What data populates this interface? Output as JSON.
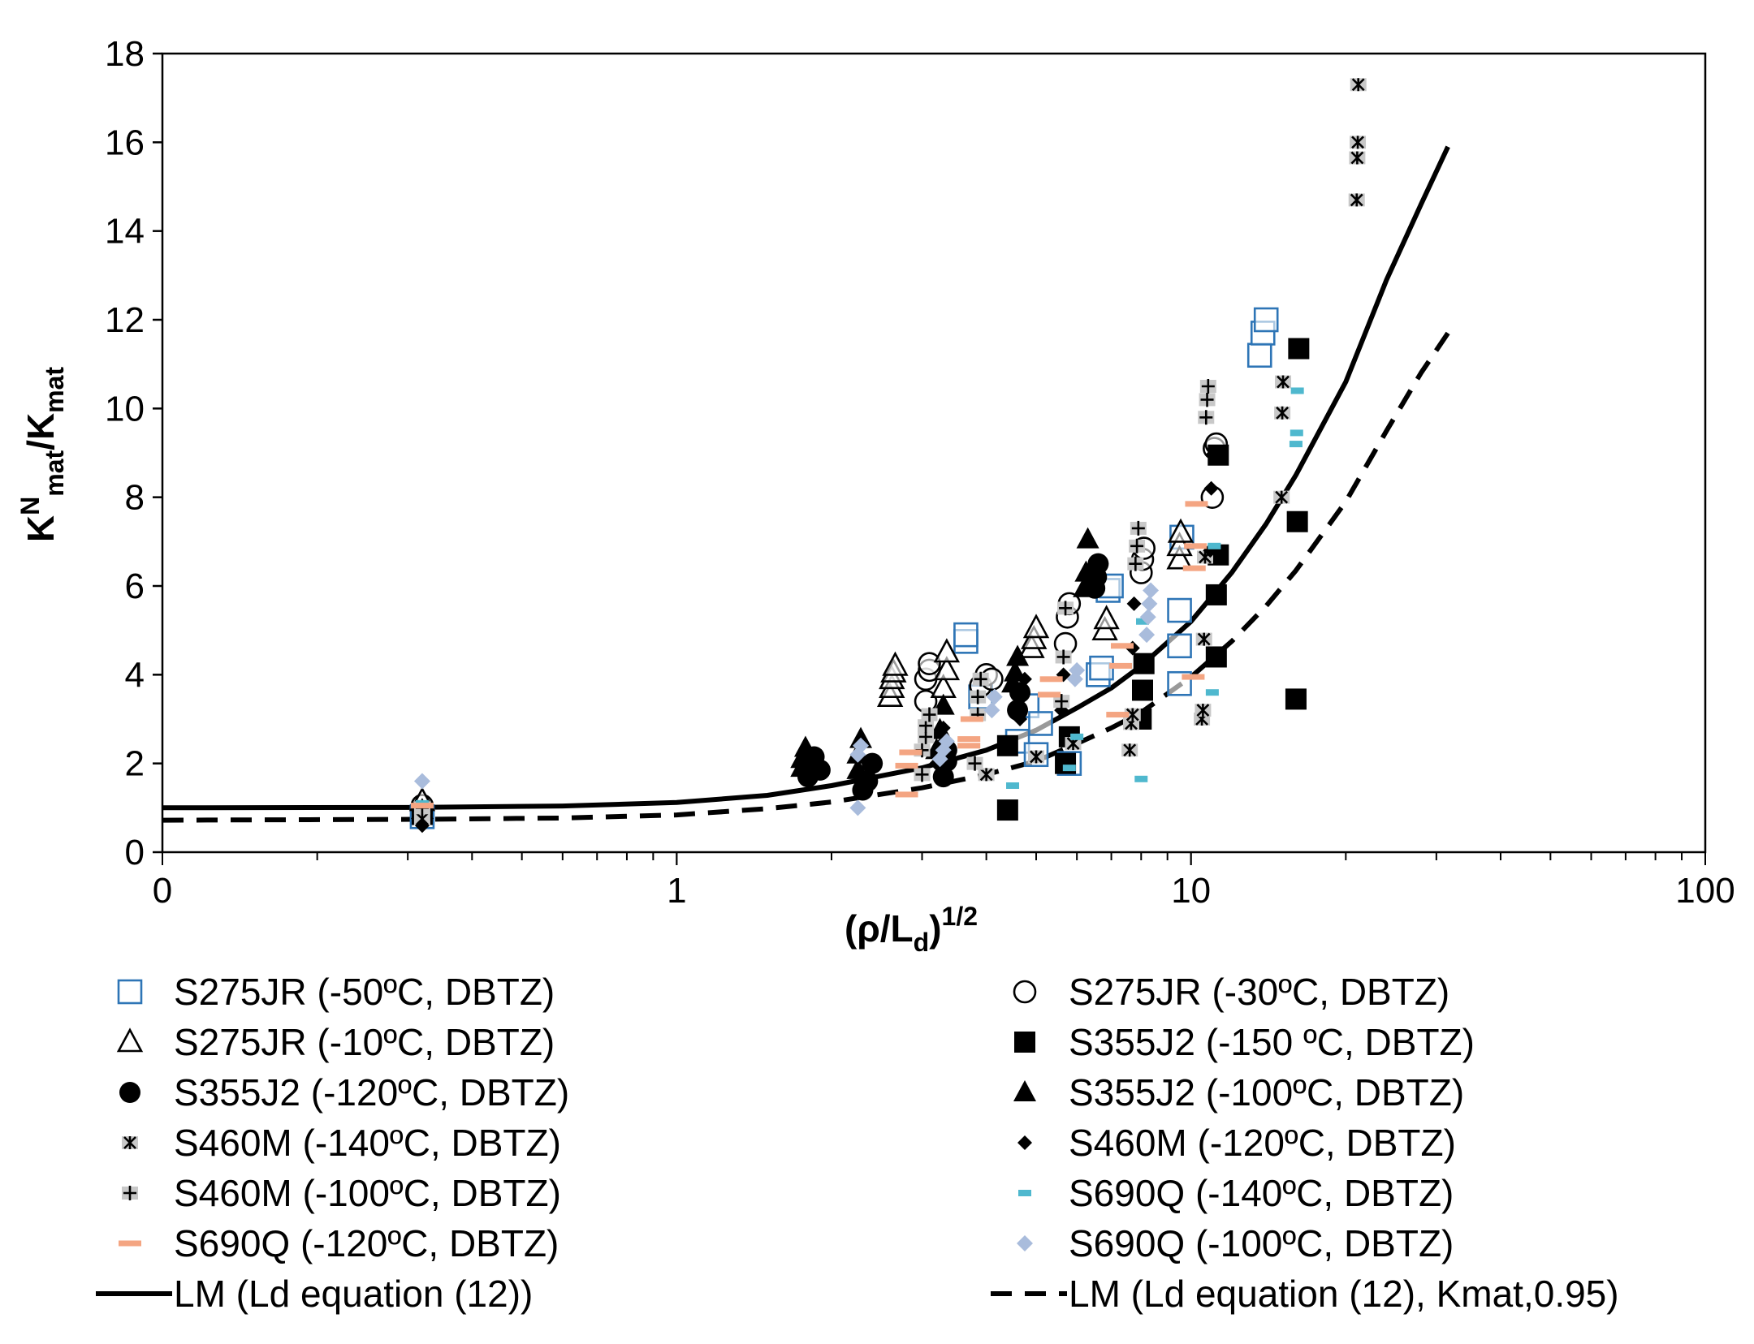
{
  "chart_data": {
    "type": "scatter",
    "title": "",
    "xlabel": "(ρ/Ld)^1/2",
    "xlabel_main": "(ρ/L",
    "xlabel_sub": "d",
    "xlabel_tail": ")",
    "xlabel_sup": "1/2",
    "ylabel": "K^N mat/K mat",
    "ylabel_k1": "K",
    "ylabel_sup": "N",
    "ylabel_sub1": "mat",
    "ylabel_slash": "/K",
    "ylabel_sub2": "mat",
    "x_scale": "log",
    "xlim": [
      0.1,
      100
    ],
    "ylim": [
      0,
      18
    ],
    "x_tick_labels": [
      "0",
      "1",
      "10",
      "100"
    ],
    "y_ticks": [
      0,
      2,
      4,
      6,
      8,
      10,
      12,
      14,
      16,
      18
    ],
    "y_tick_labels": [
      "0",
      "2",
      "4",
      "6",
      "8",
      "10",
      "12",
      "14",
      "16",
      "18"
    ],
    "legend_position": "bottom",
    "series": [
      {
        "name": "S275JR (-50ºC, DBTZ)",
        "marker": "square-open",
        "color": "#2e75b6",
        "points": [
          [
            0.32,
            0.8
          ],
          [
            3.65,
            4.75
          ],
          [
            3.65,
            4.9
          ],
          [
            3.9,
            3.5
          ],
          [
            4.6,
            2.5
          ],
          [
            4.8,
            3.3
          ],
          [
            5.0,
            2.2
          ],
          [
            5.1,
            2.9
          ],
          [
            5.8,
            2.0
          ],
          [
            6.6,
            4.0
          ],
          [
            6.7,
            4.15
          ],
          [
            6.9,
            5.9
          ],
          [
            7.0,
            6.0
          ],
          [
            9.5,
            3.8
          ],
          [
            9.5,
            4.65
          ],
          [
            9.5,
            5.45
          ],
          [
            9.6,
            7.1
          ],
          [
            13.6,
            11.2
          ],
          [
            13.8,
            11.7
          ],
          [
            14.0,
            12.0
          ]
        ]
      },
      {
        "name": "S275JR (-30ºC, DBTZ)",
        "marker": "circle-open",
        "color": "#000000",
        "points": [
          [
            0.32,
            1.05
          ],
          [
            3.05,
            3.4
          ],
          [
            3.05,
            3.9
          ],
          [
            3.1,
            4.1
          ],
          [
            3.1,
            4.25
          ],
          [
            3.9,
            3.75
          ],
          [
            4.0,
            4.0
          ],
          [
            4.1,
            3.9
          ],
          [
            5.7,
            4.7
          ],
          [
            5.75,
            5.3
          ],
          [
            5.8,
            5.6
          ],
          [
            8.0,
            6.3
          ],
          [
            8.05,
            6.6
          ],
          [
            8.1,
            6.85
          ],
          [
            11.0,
            8.0
          ],
          [
            11.1,
            9.1
          ],
          [
            11.2,
            9.2
          ]
        ]
      },
      {
        "name": "S275JR (-10ºC, DBTZ)",
        "marker": "triangle-open",
        "color": "#000000",
        "points": [
          [
            0.32,
            1.15
          ],
          [
            2.6,
            3.5
          ],
          [
            2.62,
            3.7
          ],
          [
            2.62,
            3.9
          ],
          [
            2.64,
            4.05
          ],
          [
            2.66,
            4.2
          ],
          [
            3.3,
            3.7
          ],
          [
            3.35,
            4.1
          ],
          [
            3.35,
            4.5
          ],
          [
            4.9,
            4.6
          ],
          [
            4.95,
            4.8
          ],
          [
            5.0,
            5.05
          ],
          [
            6.8,
            5.0
          ],
          [
            6.85,
            5.25
          ],
          [
            9.5,
            6.6
          ],
          [
            9.5,
            6.9
          ],
          [
            9.55,
            7.2
          ]
        ]
      },
      {
        "name": "S355J2 (-150 ºC, DBTZ)",
        "marker": "square-filled",
        "color": "#000000",
        "points": [
          [
            0.32,
            0.85
          ],
          [
            4.4,
            0.95
          ],
          [
            4.4,
            2.4
          ],
          [
            5.7,
            2.0
          ],
          [
            5.8,
            2.6
          ],
          [
            8.0,
            3.0
          ],
          [
            8.05,
            3.65
          ],
          [
            8.1,
            4.25
          ],
          [
            11.2,
            4.4
          ],
          [
            11.2,
            5.8
          ],
          [
            11.3,
            6.7
          ],
          [
            11.3,
            8.95
          ],
          [
            16.0,
            3.45
          ],
          [
            16.1,
            7.45
          ],
          [
            16.2,
            11.35
          ]
        ]
      },
      {
        "name": "S355J2 (-120ºC, DBTZ)",
        "marker": "circle-filled",
        "color": "#000000",
        "points": [
          [
            0.32,
            0.9
          ],
          [
            1.8,
            1.7
          ],
          [
            1.8,
            1.95
          ],
          [
            1.85,
            2.15
          ],
          [
            1.9,
            1.85
          ],
          [
            2.3,
            1.4
          ],
          [
            2.35,
            1.6
          ],
          [
            2.4,
            2.0
          ],
          [
            3.3,
            1.7
          ],
          [
            3.35,
            2.05
          ],
          [
            3.35,
            2.3
          ],
          [
            4.6,
            3.2
          ],
          [
            4.65,
            3.6
          ],
          [
            6.5,
            5.95
          ],
          [
            6.55,
            6.2
          ],
          [
            6.6,
            6.5
          ]
        ]
      },
      {
        "name": "S355J2 (-100ºC, DBTZ)",
        "marker": "triangle-filled",
        "color": "#000000",
        "points": [
          [
            0.32,
            0.95
          ],
          [
            1.75,
            1.9
          ],
          [
            1.75,
            2.1
          ],
          [
            1.78,
            2.35
          ],
          [
            2.25,
            1.85
          ],
          [
            2.25,
            2.2
          ],
          [
            2.28,
            2.55
          ],
          [
            3.2,
            2.3
          ],
          [
            3.25,
            2.75
          ],
          [
            3.3,
            3.3
          ],
          [
            4.5,
            3.8
          ],
          [
            4.55,
            4.05
          ],
          [
            4.6,
            4.4
          ],
          [
            6.2,
            5.95
          ],
          [
            6.25,
            6.3
          ],
          [
            6.3,
            7.05
          ]
        ]
      },
      {
        "name": "S460M (-140ºC, DBTZ)",
        "marker": "asterisk",
        "color": "#000000",
        "points": [
          [
            0.32,
            0.75
          ],
          [
            4.0,
            1.75
          ],
          [
            5.0,
            2.15
          ],
          [
            5.9,
            2.45
          ],
          [
            7.6,
            2.3
          ],
          [
            7.65,
            2.9
          ],
          [
            7.7,
            3.1
          ],
          [
            10.5,
            3.0
          ],
          [
            10.55,
            3.2
          ],
          [
            10.6,
            4.8
          ],
          [
            10.65,
            6.65
          ],
          [
            15.0,
            8.0
          ],
          [
            15.05,
            9.9
          ],
          [
            15.1,
            10.6
          ],
          [
            21.0,
            14.7
          ],
          [
            21.05,
            15.65
          ],
          [
            21.1,
            16.0
          ],
          [
            21.15,
            17.3
          ]
        ]
      },
      {
        "name": "S460M (-120ºC, DBTZ)",
        "marker": "diamond-filled",
        "color": "#000000",
        "points": [
          [
            0.32,
            0.6
          ],
          [
            3.2,
            2.0
          ],
          [
            3.25,
            2.4
          ],
          [
            3.3,
            2.8
          ],
          [
            4.65,
            3.0
          ],
          [
            4.7,
            3.5
          ],
          [
            4.75,
            3.9
          ],
          [
            5.6,
            3.2
          ],
          [
            5.65,
            4.0
          ],
          [
            7.7,
            4.6
          ],
          [
            7.75,
            5.6
          ],
          [
            10.9,
            6.8
          ],
          [
            10.95,
            8.2
          ],
          [
            11.0,
            8.95
          ]
        ]
      },
      {
        "name": "S460M (-100ºC, DBTZ)",
        "marker": "plus-boxed",
        "color": "#000000",
        "points": [
          [
            0.32,
            1.0
          ],
          [
            3.0,
            1.75
          ],
          [
            3.0,
            2.3
          ],
          [
            3.05,
            2.6
          ],
          [
            3.05,
            2.85
          ],
          [
            3.1,
            3.1
          ],
          [
            3.8,
            2.0
          ],
          [
            3.85,
            3.1
          ],
          [
            3.85,
            3.5
          ],
          [
            3.9,
            3.9
          ],
          [
            5.6,
            3.4
          ],
          [
            5.65,
            4.4
          ],
          [
            5.7,
            5.5
          ],
          [
            7.8,
            6.5
          ],
          [
            7.85,
            6.9
          ],
          [
            7.9,
            7.3
          ],
          [
            10.7,
            9.8
          ],
          [
            10.75,
            10.2
          ],
          [
            10.8,
            10.5
          ]
        ]
      },
      {
        "name": "S690Q (-140ºC, DBTZ)",
        "marker": "dash-small",
        "color": "#4fb8ce",
        "points": [
          [
            0.32,
            1.1
          ],
          [
            4.5,
            1.5
          ],
          [
            5.8,
            1.9
          ],
          [
            6.0,
            2.6
          ],
          [
            8.0,
            1.65
          ],
          [
            8.05,
            5.2
          ],
          [
            11.0,
            3.6
          ],
          [
            11.1,
            6.9
          ],
          [
            16.0,
            9.2
          ],
          [
            16.05,
            9.45
          ],
          [
            16.1,
            10.4
          ]
        ]
      },
      {
        "name": "S690Q (-120ºC, DBTZ)",
        "marker": "dash-wide",
        "color": "#f4a582",
        "points": [
          [
            0.32,
            1.05
          ],
          [
            2.8,
            1.3
          ],
          [
            2.8,
            1.95
          ],
          [
            2.85,
            2.25
          ],
          [
            3.7,
            2.4
          ],
          [
            3.7,
            2.55
          ],
          [
            3.75,
            3.0
          ],
          [
            5.3,
            3.55
          ],
          [
            5.35,
            3.9
          ],
          [
            7.2,
            3.1
          ],
          [
            7.3,
            4.2
          ],
          [
            7.35,
            4.65
          ],
          [
            10.1,
            3.95
          ],
          [
            10.15,
            6.4
          ],
          [
            10.2,
            6.9
          ],
          [
            10.25,
            7.85
          ]
        ]
      },
      {
        "name": "S690Q (-100ºC, DBTZ)",
        "marker": "diamond-light",
        "color": "#a9bcdc",
        "points": [
          [
            0.32,
            1.6
          ],
          [
            2.25,
            1.0
          ],
          [
            2.25,
            2.2
          ],
          [
            2.28,
            2.4
          ],
          [
            3.25,
            2.1
          ],
          [
            3.3,
            2.3
          ],
          [
            3.35,
            2.5
          ],
          [
            4.1,
            3.2
          ],
          [
            4.15,
            3.5
          ],
          [
            5.95,
            3.9
          ],
          [
            6.0,
            4.1
          ],
          [
            8.2,
            4.9
          ],
          [
            8.25,
            5.3
          ],
          [
            8.3,
            5.6
          ],
          [
            8.35,
            5.9
          ]
        ]
      }
    ],
    "curves": [
      {
        "name": "LM (Ld equation (12))",
        "style": "solid",
        "color": "#000000",
        "x": [
          0.1,
          0.32,
          0.6,
          1.0,
          1.5,
          2.0,
          3.0,
          4.0,
          5.0,
          6.0,
          7.0,
          8.0,
          10.0,
          12.0,
          14.0,
          16.0,
          20.0,
          24.0,
          28.0,
          31.6
        ],
        "y": [
          1.0,
          1.01,
          1.04,
          1.12,
          1.28,
          1.5,
          1.9,
          2.3,
          2.75,
          3.25,
          3.7,
          4.2,
          5.2,
          6.3,
          7.4,
          8.5,
          10.6,
          12.9,
          14.6,
          15.9
        ]
      },
      {
        "name": "LM (Ld equation (12), Kmat,0.95)",
        "style": "dashed",
        "color": "#000000",
        "x": [
          0.1,
          0.32,
          0.6,
          1.0,
          1.5,
          2.0,
          3.0,
          4.0,
          5.0,
          6.0,
          7.0,
          8.0,
          10.0,
          12.0,
          14.0,
          16.0,
          20.0,
          24.0,
          28.0,
          31.6
        ],
        "y": [
          0.72,
          0.74,
          0.77,
          0.84,
          0.98,
          1.13,
          1.45,
          1.75,
          2.05,
          2.45,
          2.8,
          3.15,
          3.95,
          4.75,
          5.55,
          6.35,
          7.9,
          9.5,
          10.8,
          11.7
        ]
      }
    ]
  }
}
